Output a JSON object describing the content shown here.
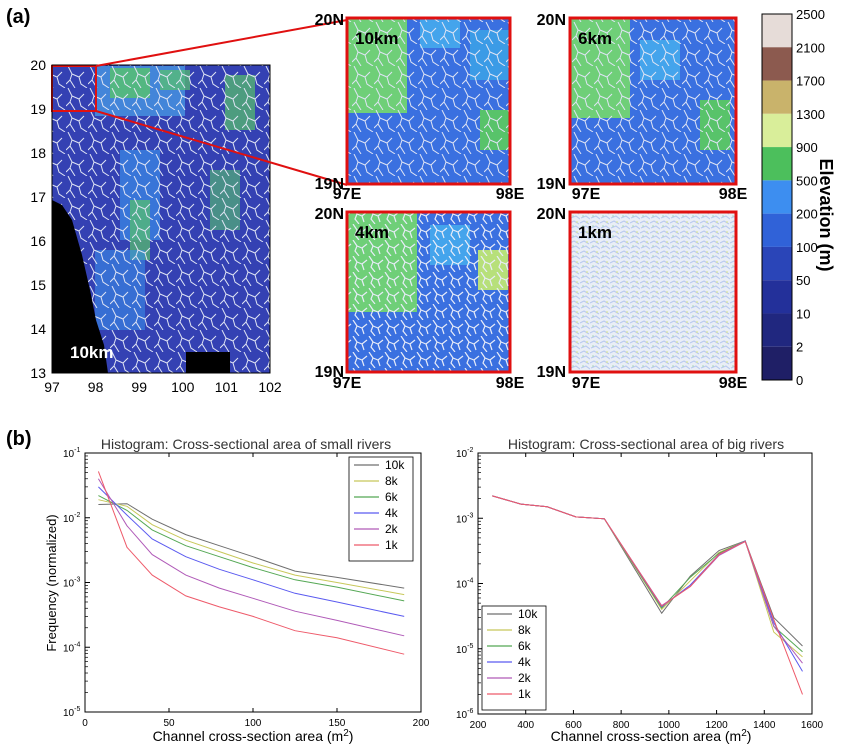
{
  "panel_labels": {
    "a": "(a)",
    "b": "(b)"
  },
  "map": {
    "overlay_label": "10km",
    "x_ticks": [
      "97",
      "98",
      "99",
      "100",
      "101",
      "102"
    ],
    "y_ticks": [
      "20",
      "19",
      "18",
      "17",
      "16",
      "15",
      "14",
      "13"
    ]
  },
  "insets": [
    {
      "label": "10km",
      "top": "20N",
      "bottom": "19N",
      "left": "97E",
      "right": "98E"
    },
    {
      "label": "6km",
      "top": "20N",
      "bottom": "19N",
      "left": "97E",
      "right": "98E"
    },
    {
      "label": "4km",
      "top": "20N",
      "bottom": "19N",
      "left": "97E",
      "right": "98E"
    },
    {
      "label": "1km",
      "top": "20N",
      "bottom": "19N",
      "left": "97E",
      "right": "98E"
    }
  ],
  "colorbar": {
    "title": "Elevation (m)",
    "ticks": [
      "2500",
      "2100",
      "1700",
      "1300",
      "900",
      "500",
      "200",
      "100",
      "50",
      "10",
      "2",
      "0"
    ],
    "colors": [
      "#e6dcd8",
      "#8c5a4f",
      "#c9b36b",
      "#d9ee9a",
      "#4cbf5c",
      "#3d8ef0",
      "#3062d8",
      "#2a45b8",
      "#23309a",
      "#20277f",
      "#1f1f66"
    ]
  },
  "series_colors": {
    "10k": "#6f6f6f",
    "8k": "#c8c85a",
    "6k": "#55a855",
    "4k": "#5a5af0",
    "2k": "#b05ab8",
    "1k": "#ee5a6a"
  },
  "chart_data": [
    {
      "type": "line",
      "title": "Histogram: Cross-sectional area of small rivers",
      "xlabel": "Channel cross-section area (m",
      "xlabel_sup": "2",
      "xlabel_end": ")",
      "ylabel": "Frequency (normalized)",
      "xlim": [
        0,
        200
      ],
      "ylim": [
        1e-05,
        0.1
      ],
      "yscale": "log",
      "x_ticks": [
        0,
        50,
        100,
        150,
        200
      ],
      "y_ticks": [
        "10",
        "10",
        "10",
        "10",
        "10"
      ],
      "y_tick_exps": [
        "-1",
        "-2",
        "-3",
        "-4",
        "-5"
      ],
      "legend": "top-right",
      "x": [
        8,
        25,
        40,
        60,
        80,
        100,
        125,
        150,
        190
      ],
      "series": [
        {
          "name": "10k",
          "values": [
            0.016,
            0.0165,
            0.0095,
            0.0055,
            0.0037,
            0.0025,
            0.0015,
            0.0012,
            0.00082
          ]
        },
        {
          "name": "8k",
          "values": [
            0.019,
            0.015,
            0.0078,
            0.0045,
            0.003,
            0.002,
            0.0013,
            0.001,
            0.00065
          ]
        },
        {
          "name": "6k",
          "values": [
            0.022,
            0.013,
            0.0065,
            0.0037,
            0.0025,
            0.0017,
            0.0011,
            0.00085,
            0.00052
          ]
        },
        {
          "name": "4k",
          "values": [
            0.03,
            0.011,
            0.0047,
            0.0025,
            0.0016,
            0.0011,
            0.00068,
            0.0005,
            0.0003
          ]
        },
        {
          "name": "2k",
          "values": [
            0.04,
            0.0075,
            0.0027,
            0.0013,
            0.00082,
            0.00057,
            0.00036,
            0.00026,
            0.00015
          ]
        },
        {
          "name": "1k",
          "values": [
            0.052,
            0.0035,
            0.0013,
            0.00062,
            0.00042,
            0.0003,
            0.00018,
            0.00014,
            7.8e-05
          ]
        }
      ]
    },
    {
      "type": "line",
      "title": "Histogram: Cross-sectional area of big rivers",
      "xlabel": "Channel cross-section area (m",
      "xlabel_sup": "2",
      "xlabel_end": ")",
      "ylabel": "",
      "xlim": [
        200,
        1600
      ],
      "ylim": [
        1e-06,
        0.01
      ],
      "yscale": "log",
      "x_ticks": [
        200,
        400,
        600,
        800,
        1000,
        1200,
        1400,
        1600
      ],
      "y_ticks": [
        "10",
        "10",
        "10",
        "10",
        "10"
      ],
      "y_tick_exps": [
        "-2",
        "-3",
        "-4",
        "-5",
        "-6"
      ],
      "legend": "bottom-left",
      "x": [
        260,
        380,
        490,
        610,
        730,
        970,
        1090,
        1210,
        1320,
        1440,
        1560
      ],
      "series": [
        {
          "name": "10k",
          "values": [
            0.0022,
            0.00165,
            0.0015,
            0.00105,
            0.00098,
            3.5e-05,
            0.00013,
            0.00032,
            0.00045,
            3e-05,
            1.1e-05
          ]
        },
        {
          "name": "8k",
          "values": [
            0.0022,
            0.00165,
            0.0015,
            0.00105,
            0.00098,
            4e-05,
            0.00011,
            0.0003,
            0.00045,
            1.8e-05,
            7.5e-06
          ]
        },
        {
          "name": "6k",
          "values": [
            0.0022,
            0.00165,
            0.0015,
            0.00105,
            0.00098,
            4.2e-05,
            0.000125,
            0.00029,
            0.00045,
            2.2e-05,
            9e-06
          ]
        },
        {
          "name": "4k",
          "values": [
            0.0022,
            0.00165,
            0.0015,
            0.00105,
            0.00098,
            4.4e-05,
            9.5e-05,
            0.00028,
            0.00045,
            2.5e-05,
            4.5e-06
          ]
        },
        {
          "name": "2k",
          "values": [
            0.0022,
            0.00165,
            0.0015,
            0.00105,
            0.00098,
            4.6e-05,
            9e-05,
            0.00027,
            0.00044,
            2.2e-05,
            6e-06
          ]
        },
        {
          "name": "1k",
          "values": [
            0.0022,
            0.00165,
            0.0015,
            0.00105,
            0.00098,
            4.5e-05,
            9e-05,
            0.00028,
            0.00044,
            2.8e-05,
            2e-06
          ]
        }
      ]
    }
  ]
}
